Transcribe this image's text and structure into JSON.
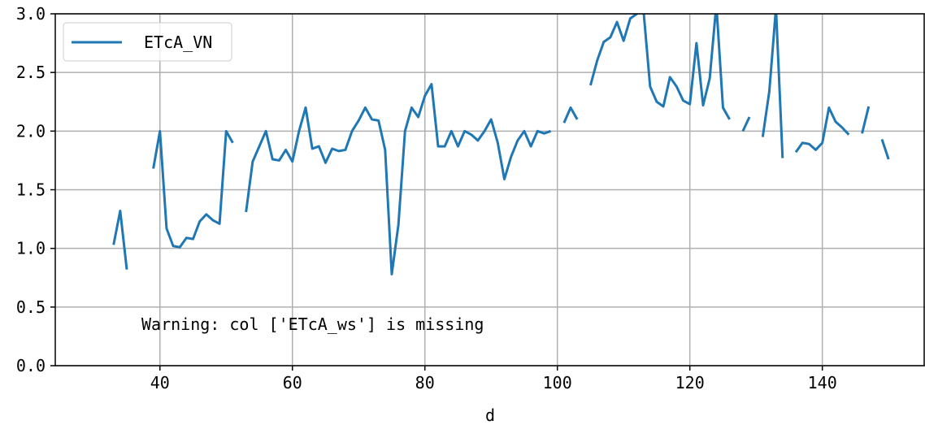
{
  "chart_data": {
    "type": "line",
    "xlabel": "d",
    "ylabel": "",
    "xlim": [
      24.2,
      155.5
    ],
    "ylim": [
      0.0,
      3.0
    ],
    "xticks": [
      40,
      60,
      80,
      100,
      120,
      140
    ],
    "yticks": [
      "0.0",
      "0.5",
      "1.0",
      "1.5",
      "2.0",
      "2.5",
      "3.0"
    ],
    "grid": true,
    "legend_position": "top-left",
    "annotation": "Warning: col ['ETcA_ws'] is missing",
    "series": [
      {
        "name": "ETcA_VN",
        "color": "#1f77b4",
        "points": [
          [
            33,
            1.03
          ],
          [
            34,
            1.32
          ],
          [
            35,
            0.82
          ],
          [
            36,
            null
          ],
          [
            39,
            1.68
          ],
          [
            40,
            2.0
          ],
          [
            41,
            1.17
          ],
          [
            42,
            1.02
          ],
          [
            43,
            1.01
          ],
          [
            44,
            1.09
          ],
          [
            45,
            1.08
          ],
          [
            46,
            1.23
          ],
          [
            47,
            1.29
          ],
          [
            48,
            1.24
          ],
          [
            49,
            1.21
          ],
          [
            50,
            2.0
          ],
          [
            51,
            1.9
          ],
          [
            52,
            null
          ],
          [
            53,
            1.31
          ],
          [
            54,
            1.74
          ],
          [
            55,
            1.87
          ],
          [
            56,
            2.0
          ],
          [
            57,
            1.76
          ],
          [
            58,
            1.75
          ],
          [
            59,
            1.84
          ],
          [
            60,
            1.74
          ],
          [
            61,
            2.0
          ],
          [
            62,
            2.2
          ],
          [
            63,
            1.85
          ],
          [
            64,
            1.87
          ],
          [
            65,
            1.73
          ],
          [
            66,
            1.85
          ],
          [
            67,
            1.83
          ],
          [
            68,
            1.84
          ],
          [
            69,
            2.0
          ],
          [
            70,
            2.09
          ],
          [
            71,
            2.2
          ],
          [
            72,
            2.1
          ],
          [
            73,
            2.09
          ],
          [
            74,
            1.84
          ],
          [
            75,
            0.78
          ],
          [
            76,
            1.2
          ],
          [
            77,
            2.0
          ],
          [
            78,
            2.2
          ],
          [
            79,
            2.12
          ],
          [
            80,
            2.3
          ],
          [
            81,
            2.4
          ],
          [
            82,
            1.87
          ],
          [
            83,
            1.87
          ],
          [
            84,
            2.0
          ],
          [
            85,
            1.87
          ],
          [
            86,
            2.0
          ],
          [
            87,
            1.97
          ],
          [
            88,
            1.92
          ],
          [
            89,
            2.0
          ],
          [
            90,
            2.1
          ],
          [
            91,
            1.9
          ],
          [
            92,
            1.59
          ],
          [
            93,
            1.78
          ],
          [
            94,
            1.92
          ],
          [
            95,
            2.0
          ],
          [
            96,
            1.87
          ],
          [
            97,
            2.0
          ],
          [
            98,
            1.98
          ],
          [
            99,
            2.0
          ],
          [
            100,
            null
          ],
          [
            101,
            2.07
          ],
          [
            102,
            2.2
          ],
          [
            103,
            2.1
          ],
          [
            104,
            null
          ],
          [
            105,
            2.39
          ],
          [
            106,
            2.6
          ],
          [
            107,
            2.76
          ],
          [
            108,
            2.8
          ],
          [
            109,
            2.93
          ],
          [
            110,
            2.77
          ],
          [
            111,
            2.96
          ],
          [
            112,
            3.0
          ],
          [
            113,
            3.03
          ],
          [
            114,
            2.38
          ],
          [
            115,
            2.25
          ],
          [
            116,
            2.21
          ],
          [
            117,
            2.46
          ],
          [
            118,
            2.38
          ],
          [
            119,
            2.26
          ],
          [
            120,
            2.23
          ],
          [
            121,
            2.75
          ],
          [
            122,
            2.22
          ],
          [
            123,
            2.45
          ],
          [
            124,
            3.08
          ],
          [
            125,
            2.2
          ],
          [
            126,
            2.1
          ],
          [
            127,
            null
          ],
          [
            128,
            2.0
          ],
          [
            129,
            2.12
          ],
          [
            130,
            null
          ],
          [
            131,
            1.95
          ],
          [
            132,
            2.34
          ],
          [
            133,
            3.05
          ],
          [
            134,
            1.77
          ],
          [
            135,
            null
          ],
          [
            136,
            1.82
          ],
          [
            137,
            1.9
          ],
          [
            138,
            1.89
          ],
          [
            139,
            1.84
          ],
          [
            140,
            1.9
          ],
          [
            141,
            2.2
          ],
          [
            142,
            2.08
          ],
          [
            143,
            2.03
          ],
          [
            144,
            1.97
          ],
          [
            145,
            null
          ],
          [
            146,
            1.98
          ],
          [
            147,
            2.21
          ],
          [
            148,
            null
          ],
          [
            149,
            1.93
          ],
          [
            150,
            1.76
          ]
        ]
      }
    ]
  }
}
